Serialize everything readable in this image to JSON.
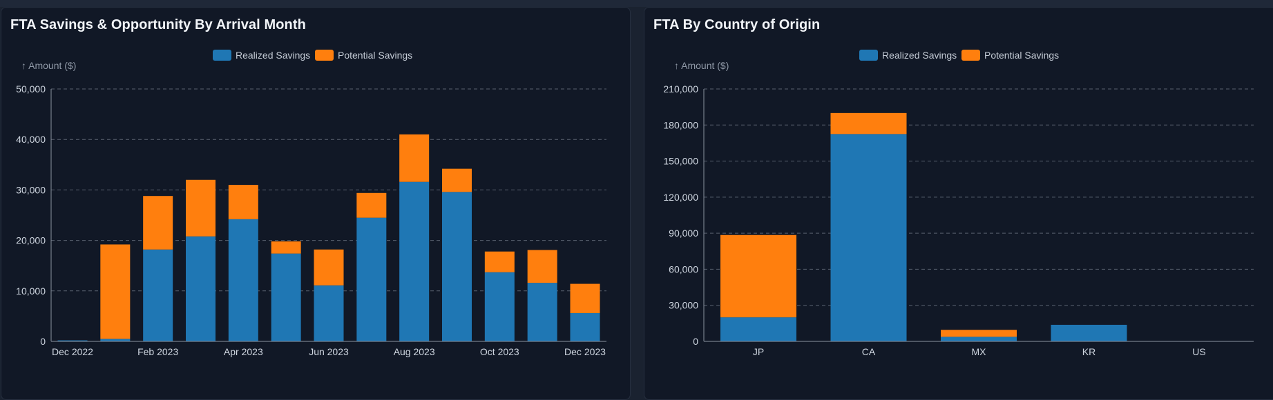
{
  "colors": {
    "realized": "#1f77b4",
    "potential": "#ff7f0e",
    "grid": "#5a6270",
    "axis": "#8a93a0"
  },
  "left_panel": {
    "title": "FTA Savings & Opportunity By Arrival Month",
    "legend": [
      "Realized Savings",
      "Potential Savings"
    ],
    "ylabel": "↑ Amount ($)"
  },
  "right_panel": {
    "title": "FTA By Country of Origin",
    "legend": [
      "Realized Savings",
      "Potential Savings"
    ],
    "ylabel": "↑ Amount ($)"
  },
  "chart_data": [
    {
      "type": "bar",
      "stacked": true,
      "title": "FTA Savings & Opportunity By Arrival Month",
      "ylabel": "↑ Amount ($)",
      "ylim": [
        0,
        50000
      ],
      "yticks": [
        "0",
        "10,000",
        "20,000",
        "30,000",
        "40,000",
        "50,000"
      ],
      "ytick_values": [
        0,
        10000,
        20000,
        30000,
        40000,
        50000
      ],
      "categories": [
        "Dec 2022",
        "Jan 2023",
        "Feb 2023",
        "Mar 2023",
        "Apr 2023",
        "May 2023",
        "Jun 2023",
        "Jul 2023",
        "Aug 2023",
        "Sep 2023",
        "Oct 2023",
        "Nov 2023",
        "Dec 2023"
      ],
      "xtick_labels": [
        "Dec 2022",
        "Feb 2023",
        "Apr 2023",
        "Jun 2023",
        "Aug 2023",
        "Oct 2023",
        "Dec 2023"
      ],
      "xtick_category_index": [
        0,
        2,
        4,
        6,
        8,
        10,
        12
      ],
      "grid": true,
      "legend_position": "top-center",
      "series": [
        {
          "name": "Realized Savings",
          "values": [
            200,
            500,
            18200,
            20800,
            24200,
            17400,
            11100,
            24500,
            31600,
            29600,
            13700,
            11600,
            5600
          ]
        },
        {
          "name": "Potential Savings",
          "values": [
            0,
            18700,
            10600,
            11200,
            6800,
            2400,
            7100,
            4900,
            9400,
            4600,
            4100,
            6500,
            5800
          ]
        }
      ]
    },
    {
      "type": "bar",
      "stacked": true,
      "title": "FTA By Country of Origin",
      "ylabel": "↑ Amount ($)",
      "ylim": [
        0,
        210000
      ],
      "yticks": [
        "0",
        "30,000",
        "60,000",
        "90,000",
        "120,000",
        "150,000",
        "180,000",
        "210,000"
      ],
      "ytick_values": [
        0,
        30000,
        60000,
        90000,
        120000,
        150000,
        180000,
        210000
      ],
      "categories": [
        "JP",
        "CA",
        "MX",
        "KR",
        "US"
      ],
      "xtick_labels": [
        "JP",
        "CA",
        "MX",
        "KR",
        "US"
      ],
      "xtick_category_index": [
        0,
        1,
        2,
        3,
        4
      ],
      "grid": true,
      "legend_position": "top-center",
      "series": [
        {
          "name": "Realized Savings",
          "values": [
            20000,
            172500,
            3800,
            13800,
            300
          ]
        },
        {
          "name": "Potential Savings",
          "values": [
            68500,
            17500,
            5800,
            0,
            0
          ]
        }
      ]
    }
  ]
}
